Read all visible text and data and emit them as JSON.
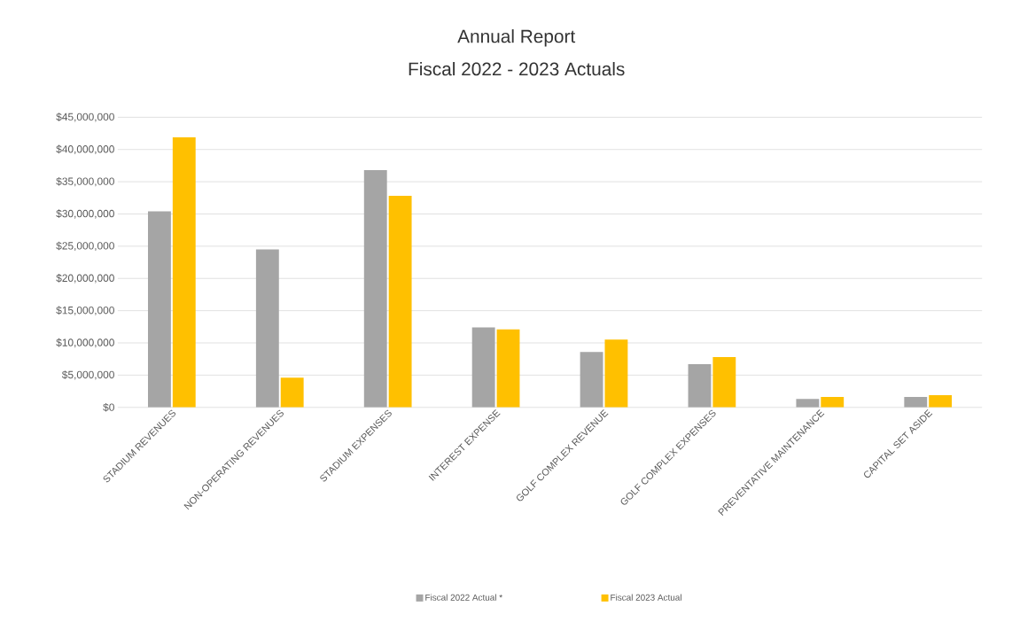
{
  "chart_data": {
    "type": "bar",
    "title": "Annual Report",
    "subtitle": "Fiscal 2022 - 2023 Actuals",
    "categories": [
      "STADIUM REVENUES",
      "NON-OPERATING REVENUES",
      "STADIUM EXPENSES",
      "INTEREST EXPENSE",
      "GOLF COMPLEX REVENUE",
      "GOLF COMPLEX EXPENSES",
      "PREVENTATIVE MAINTENANCE",
      "CAPITAL SET ASIDE"
    ],
    "series": [
      {
        "name": "Fiscal 2022 Actual *",
        "color": "#a5a5a5",
        "values": [
          30400000,
          24500000,
          36800000,
          12400000,
          8600000,
          6700000,
          1300000,
          1600000
        ]
      },
      {
        "name": "Fiscal 2023 Actual",
        "color": "#ffc000",
        "values": [
          41900000,
          4600000,
          32800000,
          12100000,
          10500000,
          7800000,
          1600000,
          1900000
        ]
      }
    ],
    "ylim": [
      0,
      45000000
    ],
    "yticks": [
      {
        "value": 0,
        "label": "$0"
      },
      {
        "value": 5000000,
        "label": "$5,000,000"
      },
      {
        "value": 10000000,
        "label": "$10,000,000"
      },
      {
        "value": 15000000,
        "label": "$15,000,000"
      },
      {
        "value": 20000000,
        "label": "$20,000,000"
      },
      {
        "value": 25000000,
        "label": "$25,000,000"
      },
      {
        "value": 30000000,
        "label": "$30,000,000"
      },
      {
        "value": 35000000,
        "label": "$35,000,000"
      },
      {
        "value": 40000000,
        "label": "$40,000,000"
      },
      {
        "value": 45000000,
        "label": "$45,000,000"
      }
    ],
    "grid": "y",
    "legend": "bottom"
  }
}
